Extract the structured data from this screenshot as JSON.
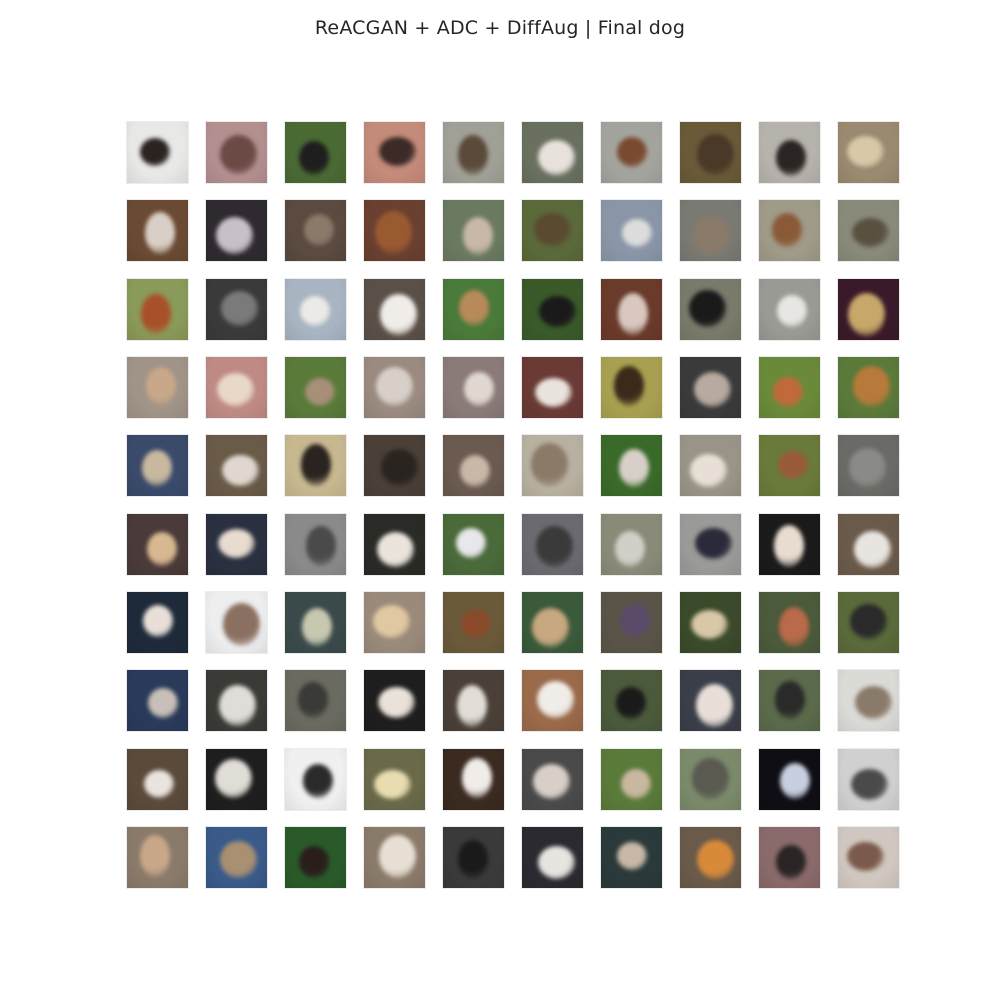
{
  "figure": {
    "title": "ReACGAN + ADC + DiffAug | Final dog"
  },
  "grid": {
    "rows": 10,
    "cols": 10,
    "tiles": [
      {
        "bg": "#e8e8e6",
        "fg": "#2a2320"
      },
      {
        "bg": "#b38f90",
        "fg": "#6b4a46"
      },
      {
        "bg": "#4a6a34",
        "fg": "#1e1e1e"
      },
      {
        "bg": "#c48a7a",
        "fg": "#3b2a26"
      },
      {
        "bg": "#a0a096",
        "fg": "#5a4a3a"
      },
      {
        "bg": "#6a7060",
        "fg": "#e8e2dc"
      },
      {
        "bg": "#a4a49e",
        "fg": "#7a4a30"
      },
      {
        "bg": "#6a5a38",
        "fg": "#4a3828"
      },
      {
        "bg": "#b6b2ac",
        "fg": "#2a2422"
      },
      {
        "bg": "#9a8a70",
        "fg": "#d8c8a8"
      },
      {
        "bg": "#6a4a32",
        "fg": "#d8d0c6"
      },
      {
        "bg": "#2e2a30",
        "fg": "#c8c0c8"
      },
      {
        "bg": "#5a4a40",
        "fg": "#8a7a6a"
      },
      {
        "bg": "#6a4030",
        "fg": "#9a5a30"
      },
      {
        "bg": "#6a7a60",
        "fg": "#c8b8a8"
      },
      {
        "bg": "#5a6a3a",
        "fg": "#5a4a30"
      },
      {
        "bg": "#8a96a8",
        "fg": "#dcdcdc"
      },
      {
        "bg": "#7a7a72",
        "fg": "#8a7a6a"
      },
      {
        "bg": "#a09a88",
        "fg": "#8a5a38"
      },
      {
        "bg": "#8a8a7a",
        "fg": "#5a5040"
      },
      {
        "bg": "#8a9a58",
        "fg": "#a8502a"
      },
      {
        "bg": "#3a3a3a",
        "fg": "#7a7a7a"
      },
      {
        "bg": "#a8b4c2",
        "fg": "#eceae6"
      },
      {
        "bg": "#5a5048",
        "fg": "#f0ece8"
      },
      {
        "bg": "#4a7a3a",
        "fg": "#b88a5a"
      },
      {
        "bg": "#3a5a2a",
        "fg": "#1a1a1a"
      },
      {
        "bg": "#6a3a2a",
        "fg": "#d8c8c0"
      },
      {
        "bg": "#7a7a6a",
        "fg": "#1a1a1a"
      },
      {
        "bg": "#9a9a94",
        "fg": "#e8e6e2"
      },
      {
        "bg": "#3a1a2a",
        "fg": "#c8a86a"
      },
      {
        "bg": "#a09488",
        "fg": "#c8a888"
      },
      {
        "bg": "#c08a84",
        "fg": "#e8d8c8"
      },
      {
        "bg": "#5a7a3a",
        "fg": "#a89078"
      },
      {
        "bg": "#9a8a80",
        "fg": "#d8d0c8"
      },
      {
        "bg": "#8a7a78",
        "fg": "#e0d8d0"
      },
      {
        "bg": "#6a3a34",
        "fg": "#eae4de"
      },
      {
        "bg": "#a8a050",
        "fg": "#3a2a1a"
      },
      {
        "bg": "#3a3a3a",
        "fg": "#b8aaa0"
      },
      {
        "bg": "#6a8a3a",
        "fg": "#c06a3a"
      },
      {
        "bg": "#5a7a3a",
        "fg": "#b87a3a"
      },
      {
        "bg": "#3a4a6a",
        "fg": "#c8b8a0"
      },
      {
        "bg": "#6a5a48",
        "fg": "#e0d8d0"
      },
      {
        "bg": "#c8b890",
        "fg": "#2a2420"
      },
      {
        "bg": "#4a4038",
        "fg": "#2a2420"
      },
      {
        "bg": "#6a5a50",
        "fg": "#c8b8a8"
      },
      {
        "bg": "#b8b0a0",
        "fg": "#8a7a68"
      },
      {
        "bg": "#3a6a2a",
        "fg": "#d8d0c8"
      },
      {
        "bg": "#9a9488",
        "fg": "#e8e0d6"
      },
      {
        "bg": "#6a7a3a",
        "fg": "#9a5a3a"
      },
      {
        "bg": "#6a6a66",
        "fg": "#8a8a86"
      },
      {
        "bg": "#4a3a3a",
        "fg": "#d8b890"
      },
      {
        "bg": "#2a3040",
        "fg": "#e8dcd0"
      },
      {
        "bg": "#8a8a8a",
        "fg": "#4a4a4a"
      },
      {
        "bg": "#2a2a26",
        "fg": "#eae4dc"
      },
      {
        "bg": "#4a6a3a",
        "fg": "#e8e8ec"
      },
      {
        "bg": "#6a6a70",
        "fg": "#3a3a3a"
      },
      {
        "bg": "#8a8a78",
        "fg": "#d0d0c8"
      },
      {
        "bg": "#9a9a98",
        "fg": "#2a2a3a"
      },
      {
        "bg": "#1a1a1a",
        "fg": "#e8dcd0"
      },
      {
        "bg": "#6a5a4a",
        "fg": "#e8e4e0"
      },
      {
        "bg": "#1e2a3a",
        "fg": "#e8e0d8"
      },
      {
        "bg": "#eeeeee",
        "fg": "#8a7060"
      },
      {
        "bg": "#3a4a4a",
        "fg": "#c8c8b0"
      },
      {
        "bg": "#9a8a7a",
        "fg": "#e0c8a0"
      },
      {
        "bg": "#6a5a3a",
        "fg": "#8a4a2a"
      },
      {
        "bg": "#3a5a3a",
        "fg": "#c8a880"
      },
      {
        "bg": "#5a5448",
        "fg": "#5a4a6a"
      },
      {
        "bg": "#3a4a2a",
        "fg": "#d8c8a8"
      },
      {
        "bg": "#4a5a3a",
        "fg": "#b86a4a"
      },
      {
        "bg": "#5a6a3a",
        "fg": "#2a2a2a"
      },
      {
        "bg": "#2a3a5a",
        "fg": "#c8c0b8"
      },
      {
        "bg": "#3a3a36",
        "fg": "#e0dcd8"
      },
      {
        "bg": "#6a6a60",
        "fg": "#3a3a36"
      },
      {
        "bg": "#1e1e1e",
        "fg": "#eae2d8"
      },
      {
        "bg": "#4a4038",
        "fg": "#e0dcd6"
      },
      {
        "bg": "#9a6a4a",
        "fg": "#f0ece8"
      },
      {
        "bg": "#4a5a3a",
        "fg": "#1a1a1a"
      },
      {
        "bg": "#3a3e48",
        "fg": "#e8e0d8"
      },
      {
        "bg": "#5a6a4a",
        "fg": "#2a2a2a"
      },
      {
        "bg": "#dadad6",
        "fg": "#8a7a6a"
      },
      {
        "bg": "#5a4a3a",
        "fg": "#eae4e0"
      },
      {
        "bg": "#1e1e1e",
        "fg": "#e0dcd6"
      },
      {
        "bg": "#f0f0f0",
        "fg": "#2a2a2a"
      },
      {
        "bg": "#6a6a4a",
        "fg": "#e8dcb0"
      },
      {
        "bg": "#3a2a20",
        "fg": "#f0ece8"
      },
      {
        "bg": "#4a4a4a",
        "fg": "#d8d0c8"
      },
      {
        "bg": "#5a7a3a",
        "fg": "#c8b8a0"
      },
      {
        "bg": "#7a8a6a",
        "fg": "#5a5a50"
      },
      {
        "bg": "#0e0e14",
        "fg": "#c8d0e0"
      },
      {
        "bg": "#d0d0d0",
        "fg": "#4a4a4a"
      },
      {
        "bg": "#8a7a6a",
        "fg": "#c8a888"
      },
      {
        "bg": "#3a5a8a",
        "fg": "#a89070"
      },
      {
        "bg": "#2a5a2a",
        "fg": "#2a1e1a"
      },
      {
        "bg": "#8a7a6a",
        "fg": "#e8e0d4"
      },
      {
        "bg": "#3a3a3a",
        "fg": "#1a1a1a"
      },
      {
        "bg": "#2a2a30",
        "fg": "#e8e4e0"
      },
      {
        "bg": "#2a3a3a",
        "fg": "#c8b8a8"
      },
      {
        "bg": "#6a5a4a",
        "fg": "#d88a3a"
      },
      {
        "bg": "#8a6a6a",
        "fg": "#2a2424"
      },
      {
        "bg": "#d0c8c0",
        "fg": "#7a5a4a"
      }
    ]
  }
}
